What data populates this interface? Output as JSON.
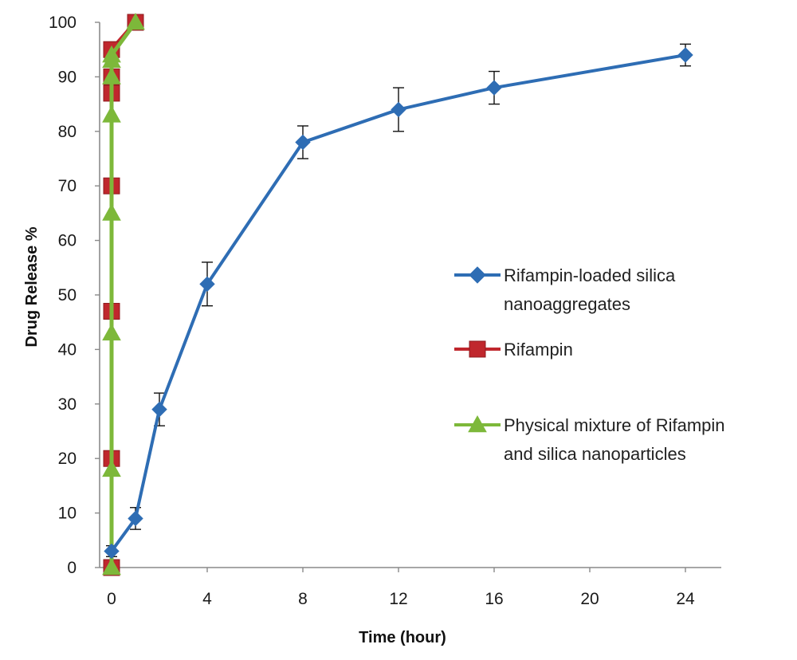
{
  "chart_data": {
    "type": "line",
    "xlabel": "Time (hour)",
    "ylabel": "Drug Release %",
    "xlim": [
      -0.5,
      25.5
    ],
    "ylim": [
      0,
      100
    ],
    "x_ticks": [
      "0",
      "4",
      "8",
      "12",
      "16",
      "20",
      "24"
    ],
    "y_ticks": [
      "0",
      "10",
      "20",
      "30",
      "40",
      "50",
      "60",
      "70",
      "80",
      "90",
      "100"
    ],
    "grid": false,
    "legend_position": "right",
    "series": [
      {
        "name": "Rifampin-loaded silica nanoaggregates",
        "legend_lines": [
          "Rifampin-loaded silica",
          "nanoaggregates"
        ],
        "color": "#2e6db4",
        "marker": "diamond",
        "x": [
          0,
          1,
          2,
          4,
          8,
          12,
          16,
          24
        ],
        "y": [
          3,
          9,
          29,
          52,
          78,
          84,
          88,
          94
        ],
        "error": [
          1,
          2,
          3,
          4,
          3,
          4,
          3,
          2
        ]
      },
      {
        "name": "Rifampin",
        "legend_lines": [
          "Rifampin"
        ],
        "color": "#c0272d",
        "marker": "square",
        "x": [
          0,
          0,
          0,
          0,
          0,
          0,
          0,
          1
        ],
        "y": [
          0,
          20,
          47,
          70,
          87,
          90,
          95,
          100
        ]
      },
      {
        "name": "Physical mixture of Rifampin and silica nanoparticles",
        "legend_lines": [
          "Physical mixture of Rifampin",
          "and silica nanoparticles"
        ],
        "color": "#7db83a",
        "marker": "triangle",
        "x": [
          0,
          0,
          0,
          0,
          0,
          0,
          0,
          0,
          1
        ],
        "y": [
          0,
          18,
          43,
          65,
          83,
          90,
          93,
          94,
          100
        ]
      }
    ]
  }
}
